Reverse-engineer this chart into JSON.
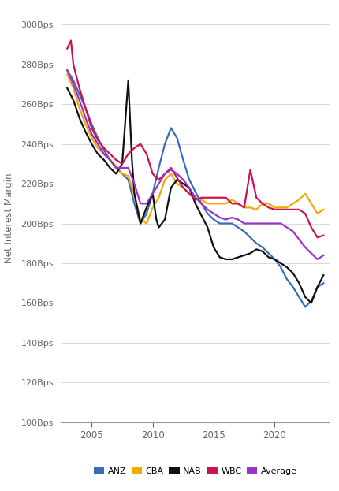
{
  "title": "",
  "ylabel": "Net Interest Margin",
  "ylim": [
    100,
    305
  ],
  "yticks": [
    100,
    120,
    140,
    160,
    180,
    200,
    220,
    240,
    260,
    280,
    300
  ],
  "xlim": [
    2002.5,
    2024.5
  ],
  "xticks": [
    2005,
    2010,
    2015,
    2020
  ],
  "background_color": "#ffffff",
  "series": {
    "ANZ": {
      "color": "#3B6CB7",
      "linewidth": 1.6,
      "data": [
        [
          2003.0,
          277
        ],
        [
          2003.5,
          272
        ],
        [
          2004.0,
          265
        ],
        [
          2004.5,
          258
        ],
        [
          2005.0,
          250
        ],
        [
          2005.5,
          243
        ],
        [
          2006.0,
          237
        ],
        [
          2006.5,
          232
        ],
        [
          2007.0,
          228
        ],
        [
          2007.5,
          225
        ],
        [
          2008.0,
          222
        ],
        [
          2008.5,
          210
        ],
        [
          2009.0,
          200
        ],
        [
          2009.5,
          205
        ],
        [
          2010.0,
          215
        ],
        [
          2010.5,
          228
        ],
        [
          2011.0,
          240
        ],
        [
          2011.5,
          248
        ],
        [
          2012.0,
          243
        ],
        [
          2012.5,
          232
        ],
        [
          2013.0,
          222
        ],
        [
          2013.5,
          216
        ],
        [
          2014.0,
          210
        ],
        [
          2014.5,
          205
        ],
        [
          2015.0,
          202
        ],
        [
          2015.5,
          200
        ],
        [
          2016.0,
          200
        ],
        [
          2016.5,
          200
        ],
        [
          2017.0,
          198
        ],
        [
          2017.5,
          196
        ],
        [
          2018.0,
          193
        ],
        [
          2018.5,
          190
        ],
        [
          2019.0,
          188
        ],
        [
          2019.5,
          185
        ],
        [
          2020.0,
          182
        ],
        [
          2020.5,
          178
        ],
        [
          2021.0,
          172
        ],
        [
          2021.5,
          168
        ],
        [
          2022.0,
          163
        ],
        [
          2022.5,
          158
        ],
        [
          2023.0,
          161
        ],
        [
          2023.5,
          168
        ],
        [
          2024.0,
          170
        ]
      ]
    },
    "CBA": {
      "color": "#F5A800",
      "linewidth": 1.6,
      "data": [
        [
          2003.0,
          275
        ],
        [
          2003.5,
          268
        ],
        [
          2004.0,
          258
        ],
        [
          2004.5,
          250
        ],
        [
          2005.0,
          243
        ],
        [
          2005.5,
          238
        ],
        [
          2006.0,
          235
        ],
        [
          2006.5,
          232
        ],
        [
          2007.0,
          229
        ],
        [
          2007.5,
          225
        ],
        [
          2008.0,
          224
        ],
        [
          2008.5,
          214
        ],
        [
          2009.0,
          202
        ],
        [
          2009.5,
          200
        ],
        [
          2010.0,
          208
        ],
        [
          2010.5,
          213
        ],
        [
          2011.0,
          222
        ],
        [
          2011.5,
          225
        ],
        [
          2012.0,
          220
        ],
        [
          2012.5,
          218
        ],
        [
          2013.0,
          215
        ],
        [
          2013.5,
          213
        ],
        [
          2014.0,
          212
        ],
        [
          2014.5,
          210
        ],
        [
          2015.0,
          210
        ],
        [
          2015.5,
          210
        ],
        [
          2016.0,
          210
        ],
        [
          2016.5,
          212
        ],
        [
          2017.0,
          210
        ],
        [
          2017.5,
          208
        ],
        [
          2018.0,
          208
        ],
        [
          2018.5,
          207
        ],
        [
          2019.0,
          210
        ],
        [
          2019.5,
          210
        ],
        [
          2020.0,
          208
        ],
        [
          2020.5,
          208
        ],
        [
          2021.0,
          208
        ],
        [
          2021.5,
          210
        ],
        [
          2022.0,
          212
        ],
        [
          2022.5,
          215
        ],
        [
          2023.0,
          210
        ],
        [
          2023.5,
          205
        ],
        [
          2024.0,
          207
        ]
      ]
    },
    "NAB": {
      "color": "#111111",
      "linewidth": 1.6,
      "data": [
        [
          2003.0,
          268
        ],
        [
          2003.5,
          262
        ],
        [
          2004.0,
          253
        ],
        [
          2004.5,
          246
        ],
        [
          2005.0,
          240
        ],
        [
          2005.5,
          235
        ],
        [
          2006.0,
          232
        ],
        [
          2006.5,
          228
        ],
        [
          2007.0,
          225
        ],
        [
          2007.5,
          230
        ],
        [
          2008.0,
          272
        ],
        [
          2008.3,
          232
        ],
        [
          2008.5,
          215
        ],
        [
          2009.0,
          200
        ],
        [
          2009.5,
          208
        ],
        [
          2010.0,
          215
        ],
        [
          2010.3,
          202
        ],
        [
          2010.5,
          198
        ],
        [
          2011.0,
          202
        ],
        [
          2011.5,
          218
        ],
        [
          2012.0,
          222
        ],
        [
          2012.5,
          220
        ],
        [
          2013.0,
          218
        ],
        [
          2013.5,
          210
        ],
        [
          2014.0,
          204
        ],
        [
          2014.5,
          198
        ],
        [
          2015.0,
          188
        ],
        [
          2015.5,
          183
        ],
        [
          2016.0,
          182
        ],
        [
          2016.5,
          182
        ],
        [
          2017.0,
          183
        ],
        [
          2017.5,
          184
        ],
        [
          2018.0,
          185
        ],
        [
          2018.5,
          187
        ],
        [
          2019.0,
          186
        ],
        [
          2019.5,
          183
        ],
        [
          2020.0,
          182
        ],
        [
          2020.5,
          180
        ],
        [
          2021.0,
          178
        ],
        [
          2021.5,
          175
        ],
        [
          2022.0,
          170
        ],
        [
          2022.5,
          163
        ],
        [
          2023.0,
          160
        ],
        [
          2023.5,
          168
        ],
        [
          2024.0,
          174
        ]
      ]
    },
    "WBC": {
      "color": "#CC1155",
      "linewidth": 1.6,
      "data": [
        [
          2003.0,
          288
        ],
        [
          2003.3,
          292
        ],
        [
          2003.5,
          280
        ],
        [
          2004.0,
          268
        ],
        [
          2004.5,
          258
        ],
        [
          2005.0,
          248
        ],
        [
          2005.5,
          242
        ],
        [
          2006.0,
          238
        ],
        [
          2006.5,
          235
        ],
        [
          2007.0,
          232
        ],
        [
          2007.5,
          230
        ],
        [
          2008.0,
          235
        ],
        [
          2008.5,
          238
        ],
        [
          2009.0,
          240
        ],
        [
          2009.5,
          235
        ],
        [
          2010.0,
          225
        ],
        [
          2010.5,
          222
        ],
        [
          2011.0,
          225
        ],
        [
          2011.5,
          228
        ],
        [
          2012.0,
          223
        ],
        [
          2012.5,
          218
        ],
        [
          2013.0,
          215
        ],
        [
          2013.5,
          212
        ],
        [
          2014.0,
          213
        ],
        [
          2014.5,
          213
        ],
        [
          2015.0,
          213
        ],
        [
          2015.5,
          213
        ],
        [
          2016.0,
          213
        ],
        [
          2016.5,
          210
        ],
        [
          2017.0,
          210
        ],
        [
          2017.5,
          208
        ],
        [
          2018.0,
          227
        ],
        [
          2018.5,
          213
        ],
        [
          2019.0,
          210
        ],
        [
          2019.5,
          208
        ],
        [
          2020.0,
          207
        ],
        [
          2020.5,
          207
        ],
        [
          2021.0,
          207
        ],
        [
          2021.5,
          207
        ],
        [
          2022.0,
          207
        ],
        [
          2022.5,
          205
        ],
        [
          2023.0,
          198
        ],
        [
          2023.5,
          193
        ],
        [
          2024.0,
          194
        ]
      ]
    },
    "Average": {
      "color": "#9933CC",
      "linewidth": 1.6,
      "data": [
        [
          2003.0,
          277
        ],
        [
          2003.5,
          270
        ],
        [
          2004.0,
          262
        ],
        [
          2004.5,
          253
        ],
        [
          2005.0,
          245
        ],
        [
          2005.5,
          240
        ],
        [
          2006.0,
          235
        ],
        [
          2006.5,
          232
        ],
        [
          2007.0,
          228
        ],
        [
          2007.5,
          228
        ],
        [
          2008.0,
          228
        ],
        [
          2008.5,
          220
        ],
        [
          2009.0,
          210
        ],
        [
          2009.5,
          210
        ],
        [
          2010.0,
          215
        ],
        [
          2010.5,
          220
        ],
        [
          2011.0,
          225
        ],
        [
          2011.5,
          227
        ],
        [
          2012.0,
          225
        ],
        [
          2012.5,
          222
        ],
        [
          2013.0,
          218
        ],
        [
          2013.5,
          213
        ],
        [
          2014.0,
          210
        ],
        [
          2014.5,
          207
        ],
        [
          2015.0,
          205
        ],
        [
          2015.5,
          203
        ],
        [
          2016.0,
          202
        ],
        [
          2016.5,
          203
        ],
        [
          2017.0,
          202
        ],
        [
          2017.5,
          200
        ],
        [
          2018.0,
          200
        ],
        [
          2018.5,
          200
        ],
        [
          2019.0,
          200
        ],
        [
          2019.5,
          200
        ],
        [
          2020.0,
          200
        ],
        [
          2020.5,
          200
        ],
        [
          2021.0,
          198
        ],
        [
          2021.5,
          196
        ],
        [
          2022.0,
          192
        ],
        [
          2022.5,
          188
        ],
        [
          2023.0,
          185
        ],
        [
          2023.5,
          182
        ],
        [
          2024.0,
          184
        ]
      ]
    }
  },
  "legend_order": [
    "ANZ",
    "CBA",
    "NAB",
    "WBC",
    "Average"
  ]
}
